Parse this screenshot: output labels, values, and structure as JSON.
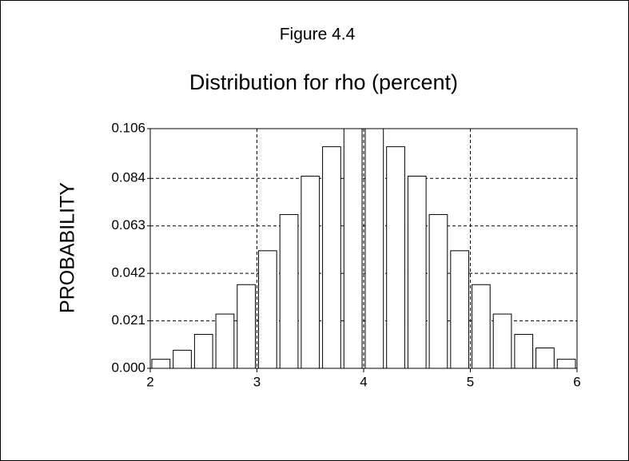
{
  "chart_data": {
    "type": "histogram",
    "title": "Figure 4.4",
    "subtitle": "Distribution for rho (percent)",
    "y_label": "PROBABILITY",
    "bins": [
      2,
      2.2,
      2.4,
      2.6,
      2.8,
      3,
      3.2,
      3.4,
      3.6,
      3.8,
      4,
      4.2,
      4.4,
      4.6,
      4.8,
      5,
      5.2,
      5.4,
      5.6,
      5.8,
      6
    ],
    "values": [
      0.004,
      0.008,
      0.015,
      0.024,
      0.037,
      0.052,
      0.068,
      0.085,
      0.098,
      0.109,
      0.109,
      0.098,
      0.085,
      0.068,
      0.052,
      0.037,
      0.024,
      0.015,
      0.009,
      0.004
    ],
    "color": "#ffffff",
    "xlim": [
      2,
      6
    ],
    "xticks": [
      2,
      3,
      4,
      5,
      6
    ],
    "ylim": [
      0,
      0.106
    ],
    "yticks": [
      {
        "value": 0,
        "label": "0.000"
      },
      0.021,
      0.042,
      0.063,
      0.084,
      0.106
    ],
    "grid": true
  }
}
